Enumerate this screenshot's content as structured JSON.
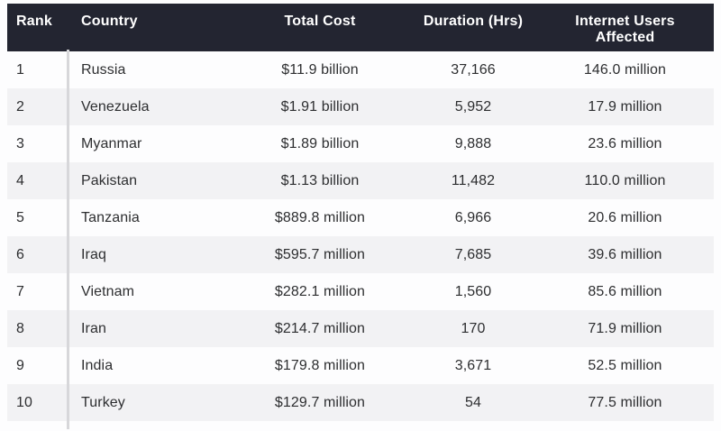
{
  "chart_data": {
    "type": "table",
    "columns": [
      "Rank",
      "Country",
      "Total Cost",
      "Duration (Hrs)",
      "Internet Users Affected"
    ],
    "rows": [
      {
        "rank": "1",
        "country": "Russia",
        "total_cost": "$11.9 billion",
        "duration_hrs": "37,166",
        "users_affected": "146.0 million"
      },
      {
        "rank": "2",
        "country": "Venezuela",
        "total_cost": "$1.91 billion",
        "duration_hrs": "5,952",
        "users_affected": "17.9 million"
      },
      {
        "rank": "3",
        "country": "Myanmar",
        "total_cost": "$1.89 billion",
        "duration_hrs": "9,888",
        "users_affected": "23.6 million"
      },
      {
        "rank": "4",
        "country": "Pakistan",
        "total_cost": "$1.13 billion",
        "duration_hrs": "11,482",
        "users_affected": "110.0 million"
      },
      {
        "rank": "5",
        "country": "Tanzania",
        "total_cost": "$889.8 million",
        "duration_hrs": "6,966",
        "users_affected": "20.6 million"
      },
      {
        "rank": "6",
        "country": "Iraq",
        "total_cost": "$595.7 million",
        "duration_hrs": "7,685",
        "users_affected": "39.6 million"
      },
      {
        "rank": "7",
        "country": "Vietnam",
        "total_cost": "$282.1 million",
        "duration_hrs": "1,560",
        "users_affected": "85.6 million"
      },
      {
        "rank": "8",
        "country": "Iran",
        "total_cost": "$214.7 million",
        "duration_hrs": "170",
        "users_affected": "71.9 million"
      },
      {
        "rank": "9",
        "country": "India",
        "total_cost": "$179.8 million",
        "duration_hrs": "3,671",
        "users_affected": "52.5 million"
      },
      {
        "rank": "10",
        "country": "Turkey",
        "total_cost": "$129.7 million",
        "duration_hrs": "54",
        "users_affected": "77.5 million"
      }
    ]
  },
  "colors": {
    "header_bg": "#232531",
    "header_text": "#ffffff",
    "row_alt_bg": "#f2f2f4",
    "row_bg": "#fdfdfe",
    "body_text": "#2d2e30",
    "divider": "#d7d7da"
  }
}
